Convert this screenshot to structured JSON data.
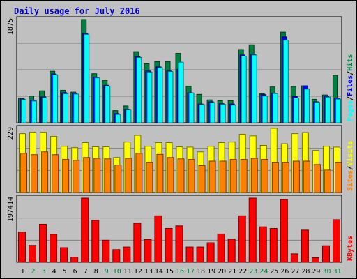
{
  "chart_data": {
    "type": "bar",
    "title": "Daily usage for July 2016",
    "categories": [
      "1",
      "2",
      "3",
      "4",
      "5",
      "6",
      "7",
      "8",
      "9",
      "10",
      "11",
      "12",
      "13",
      "14",
      "15",
      "16",
      "17",
      "18",
      "19",
      "20",
      "21",
      "22",
      "23",
      "24",
      "25",
      "26",
      "27",
      "28",
      "29",
      "30",
      "31"
    ],
    "weekend_days": [
      "2",
      "3",
      "9",
      "10",
      "16",
      "17",
      "23",
      "24",
      "30",
      "31"
    ],
    "panels": [
      {
        "id": "hits-panel",
        "max_label": "1875",
        "legend": [
          "Pages",
          "/",
          "Files",
          "/",
          "Hits"
        ],
        "ymax": 1875,
        "series": [
          {
            "name": "Hits",
            "color": "#008040",
            "values": [
              445,
              485,
              580,
              935,
              590,
              555,
              1875,
              890,
              770,
              220,
              305,
              1290,
              1070,
              1110,
              1110,
              1260,
              660,
              515,
              415,
              400,
              400,
              1330,
              1415,
              525,
              650,
              1645,
              660,
              670,
              425,
              505,
              860
            ]
          },
          {
            "name": "Files",
            "color": "#0000ff",
            "values": [
              430,
              410,
              470,
              885,
              545,
              535,
              1620,
              830,
              680,
              165,
              245,
              1200,
              940,
              1015,
              940,
              970,
              545,
              340,
              380,
              345,
              340,
              1230,
              1240,
              510,
              535,
              1560,
              475,
              670,
              380,
              485,
              450
            ]
          },
          {
            "name": "Pages",
            "color": "#00ffff",
            "values": [
              420,
              395,
              455,
              870,
              525,
              520,
              1605,
              815,
              665,
              150,
              240,
              1185,
              920,
              1000,
              930,
              1100,
              540,
              330,
              365,
              335,
              320,
              1210,
              1230,
              485,
              530,
              1500,
              450,
              610,
              370,
              465,
              430
            ]
          }
        ]
      },
      {
        "id": "visits-panel",
        "max_label": "229",
        "legend": [
          "Sites",
          "/",
          "Visits"
        ],
        "ymax": 229,
        "series": [
          {
            "name": "Visits",
            "color": "#ffff00",
            "values": [
              210,
              215,
              215,
              200,
              165,
              160,
              178,
              163,
              163,
              125,
              180,
              204,
              165,
              178,
              178,
              163,
              162,
              145,
              165,
              178,
              180,
              208,
              202,
              168,
              229,
              174,
              210,
              214,
              150,
              165,
              162
            ]
          },
          {
            "name": "Sites",
            "color": "#ff8000",
            "values": [
              140,
              135,
              145,
              135,
              118,
              115,
              125,
              122,
              120,
              98,
              122,
              140,
              108,
              136,
              125,
              120,
              118,
              96,
              112,
              112,
              118,
              118,
              122,
              118,
              108,
              108,
              112,
              112,
              100,
              80,
              108
            ]
          }
        ]
      },
      {
        "id": "kbytes-panel",
        "max_label": "197414",
        "legend": [
          "KBytes"
        ],
        "ymax": 197414,
        "series": [
          {
            "name": "KBytes",
            "color": "#ff0000",
            "values": [
              93000,
              52000,
              117000,
              86000,
              45000,
              16000,
              197414,
              129000,
              68000,
              39000,
              47000,
              120000,
              70000,
              143000,
              104000,
              112000,
              47000,
              47000,
              60000,
              87000,
              71000,
              143000,
              197414,
              109000,
              104000,
              193000,
              26000,
              99000,
              14000,
              51000,
              131000
            ]
          }
        ]
      }
    ]
  }
}
